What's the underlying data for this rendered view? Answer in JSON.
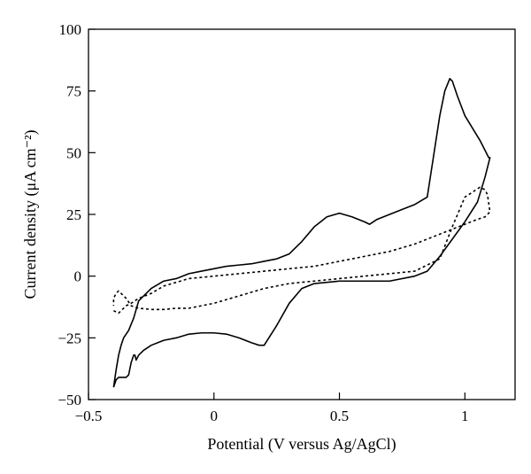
{
  "chart_data": {
    "type": "line",
    "xlabel": "Potential (V versus Ag/AgCl)",
    "ylabel": "Current density (μA cm⁻²)",
    "xlim": [
      -0.5,
      1.2
    ],
    "ylim": [
      -50,
      100
    ],
    "x_ticks": [
      -0.5,
      0,
      0.5,
      1
    ],
    "x_tick_labels": [
      "−0.5",
      "0",
      "0.5",
      "1"
    ],
    "y_ticks": [
      -50,
      -25,
      0,
      25,
      50,
      75,
      100
    ],
    "y_tick_labels": [
      "−50",
      "−25",
      "0",
      "25",
      "50",
      "75",
      "100"
    ],
    "grid": false,
    "series": [
      {
        "style": "solid",
        "color": "#000000",
        "x": [
          -0.4,
          -0.39,
          -0.38,
          -0.36,
          -0.35,
          -0.34,
          -0.33,
          -0.32,
          -0.315,
          -0.31,
          -0.3,
          -0.28,
          -0.25,
          -0.2,
          -0.15,
          -0.1,
          -0.05,
          0.0,
          0.05,
          0.1,
          0.15,
          0.18,
          0.2,
          0.25,
          0.3,
          0.35,
          0.4,
          0.5,
          0.6,
          0.7,
          0.8,
          0.85,
          0.9,
          0.95,
          1.0,
          1.05,
          1.08,
          1.1,
          1.095,
          1.09,
          1.06,
          1.0,
          0.97,
          0.95,
          0.94,
          0.92,
          0.9,
          0.85,
          0.8,
          0.75,
          0.7,
          0.65,
          0.62,
          0.6,
          0.55,
          0.5,
          0.45,
          0.4,
          0.35,
          0.3,
          0.25,
          0.2,
          0.15,
          0.1,
          0.05,
          0.0,
          -0.05,
          -0.1,
          -0.15,
          -0.2,
          -0.25,
          -0.3,
          -0.32,
          -0.34,
          -0.36,
          -0.37,
          -0.38,
          -0.39,
          -0.4
        ],
        "y": [
          -45,
          -42,
          -41,
          -41,
          -41,
          -40,
          -35,
          -32,
          -32,
          -34,
          -32,
          -30,
          -28,
          -26,
          -25,
          -23.5,
          -23,
          -23,
          -23.5,
          -25,
          -27,
          -28,
          -28,
          -20,
          -11,
          -5,
          -3,
          -2,
          -2,
          -2,
          0,
          2,
          8,
          15,
          22,
          30,
          40,
          48,
          48,
          49,
          55,
          65,
          73,
          79,
          80,
          75,
          65,
          32,
          29,
          27,
          25,
          23,
          21,
          22,
          24,
          25.5,
          24,
          20,
          14,
          9,
          7,
          6,
          5,
          4.5,
          4,
          3,
          2,
          1,
          -1,
          -2,
          -5,
          -10,
          -17,
          -22,
          -25,
          -28,
          -32,
          -38,
          -45
        ]
      },
      {
        "style": "dotted",
        "color": "#000000",
        "x": [
          -0.4,
          -0.38,
          -0.36,
          -0.35,
          -0.33,
          -0.3,
          -0.25,
          -0.2,
          -0.1,
          0.0,
          0.1,
          0.2,
          0.3,
          0.4,
          0.5,
          0.6,
          0.7,
          0.8,
          0.85,
          0.9,
          0.95,
          1.0,
          1.05,
          1.08,
          1.1,
          1.09,
          1.08,
          1.06,
          1.0,
          0.95,
          0.9,
          0.8,
          0.7,
          0.6,
          0.5,
          0.4,
          0.3,
          0.2,
          0.1,
          0.0,
          -0.05,
          -0.1,
          -0.15,
          -0.2,
          -0.25,
          -0.3,
          -0.33,
          -0.35,
          -0.37,
          -0.38,
          -0.39,
          -0.4,
          -0.4
        ],
        "y": [
          -14,
          -15,
          -13,
          -12,
          -11,
          -9,
          -7,
          -4,
          -1,
          0,
          1,
          2,
          3,
          4,
          6,
          8,
          10,
          13,
          15,
          17,
          19,
          21,
          23,
          24,
          26,
          33,
          35,
          36,
          32,
          20,
          7,
          2,
          1,
          0,
          -1,
          -2,
          -3,
          -5,
          -8,
          -11,
          -12,
          -13,
          -13,
          -13.5,
          -13.5,
          -13,
          -12,
          -9,
          -7,
          -6,
          -7,
          -9,
          -12
        ]
      }
    ]
  }
}
